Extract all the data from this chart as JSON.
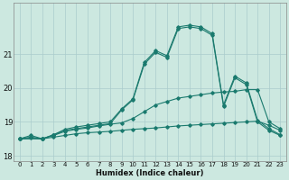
{
  "title": "",
  "xlabel": "Humidex (Indice chaleur)",
  "ylabel": "",
  "bg_color": "#cce8e0",
  "grid_color": "#aacccc",
  "line_color": "#1a7a6e",
  "xlim": [
    -0.5,
    23.5
  ],
  "ylim": [
    17.85,
    22.5
  ],
  "yticks": [
    18,
    19,
    20,
    21
  ],
  "xticks": [
    0,
    1,
    2,
    3,
    4,
    5,
    6,
    7,
    8,
    9,
    10,
    11,
    12,
    13,
    14,
    15,
    16,
    17,
    18,
    19,
    20,
    21,
    22,
    23
  ],
  "line_min_x": [
    0,
    1,
    2,
    3,
    4,
    5,
    6,
    7,
    8,
    9,
    10,
    11,
    12,
    13,
    14,
    15,
    16,
    17,
    18,
    19,
    20,
    21,
    22,
    23
  ],
  "line_min_y": [
    18.5,
    18.52,
    18.5,
    18.55,
    18.6,
    18.65,
    18.68,
    18.7,
    18.72,
    18.75,
    18.78,
    18.8,
    18.82,
    18.85,
    18.88,
    18.9,
    18.92,
    18.94,
    18.96,
    18.98,
    19.0,
    19.02,
    18.9,
    18.75
  ],
  "line_max_x": [
    0,
    1,
    2,
    3,
    4,
    5,
    6,
    7,
    8,
    9,
    10,
    11,
    12,
    13,
    14,
    15,
    16,
    17,
    18,
    19,
    20,
    21,
    22,
    23
  ],
  "line_max_y": [
    18.5,
    18.55,
    18.5,
    18.6,
    18.72,
    18.78,
    18.82,
    18.88,
    18.93,
    18.97,
    19.1,
    19.3,
    19.5,
    19.6,
    19.7,
    19.75,
    19.8,
    19.85,
    19.88,
    19.9,
    19.95,
    19.95,
    19.0,
    18.8
  ],
  "line_main1_x": [
    0,
    1,
    2,
    3,
    4,
    5,
    6,
    7,
    8,
    9,
    10,
    11,
    12,
    13,
    14,
    15,
    16,
    17,
    18,
    19,
    20,
    21,
    22,
    23
  ],
  "line_main1_y": [
    18.5,
    18.6,
    18.5,
    18.62,
    18.75,
    18.8,
    18.85,
    18.9,
    18.95,
    19.35,
    19.65,
    20.7,
    21.05,
    20.9,
    21.75,
    21.8,
    21.75,
    21.55,
    19.45,
    20.3,
    20.1,
    19.0,
    18.75,
    18.6
  ],
  "line_main2_x": [
    0,
    2,
    3,
    4,
    5,
    6,
    7,
    8,
    9,
    10,
    11,
    12,
    13,
    14,
    15,
    16,
    17,
    18,
    19,
    20,
    21,
    22,
    23
  ],
  "line_main2_y": [
    18.5,
    18.5,
    18.62,
    18.78,
    18.85,
    18.9,
    18.95,
    19.0,
    19.38,
    19.68,
    20.75,
    21.1,
    20.95,
    21.8,
    21.85,
    21.8,
    21.6,
    19.5,
    20.35,
    20.15,
    19.05,
    18.8,
    18.62
  ]
}
